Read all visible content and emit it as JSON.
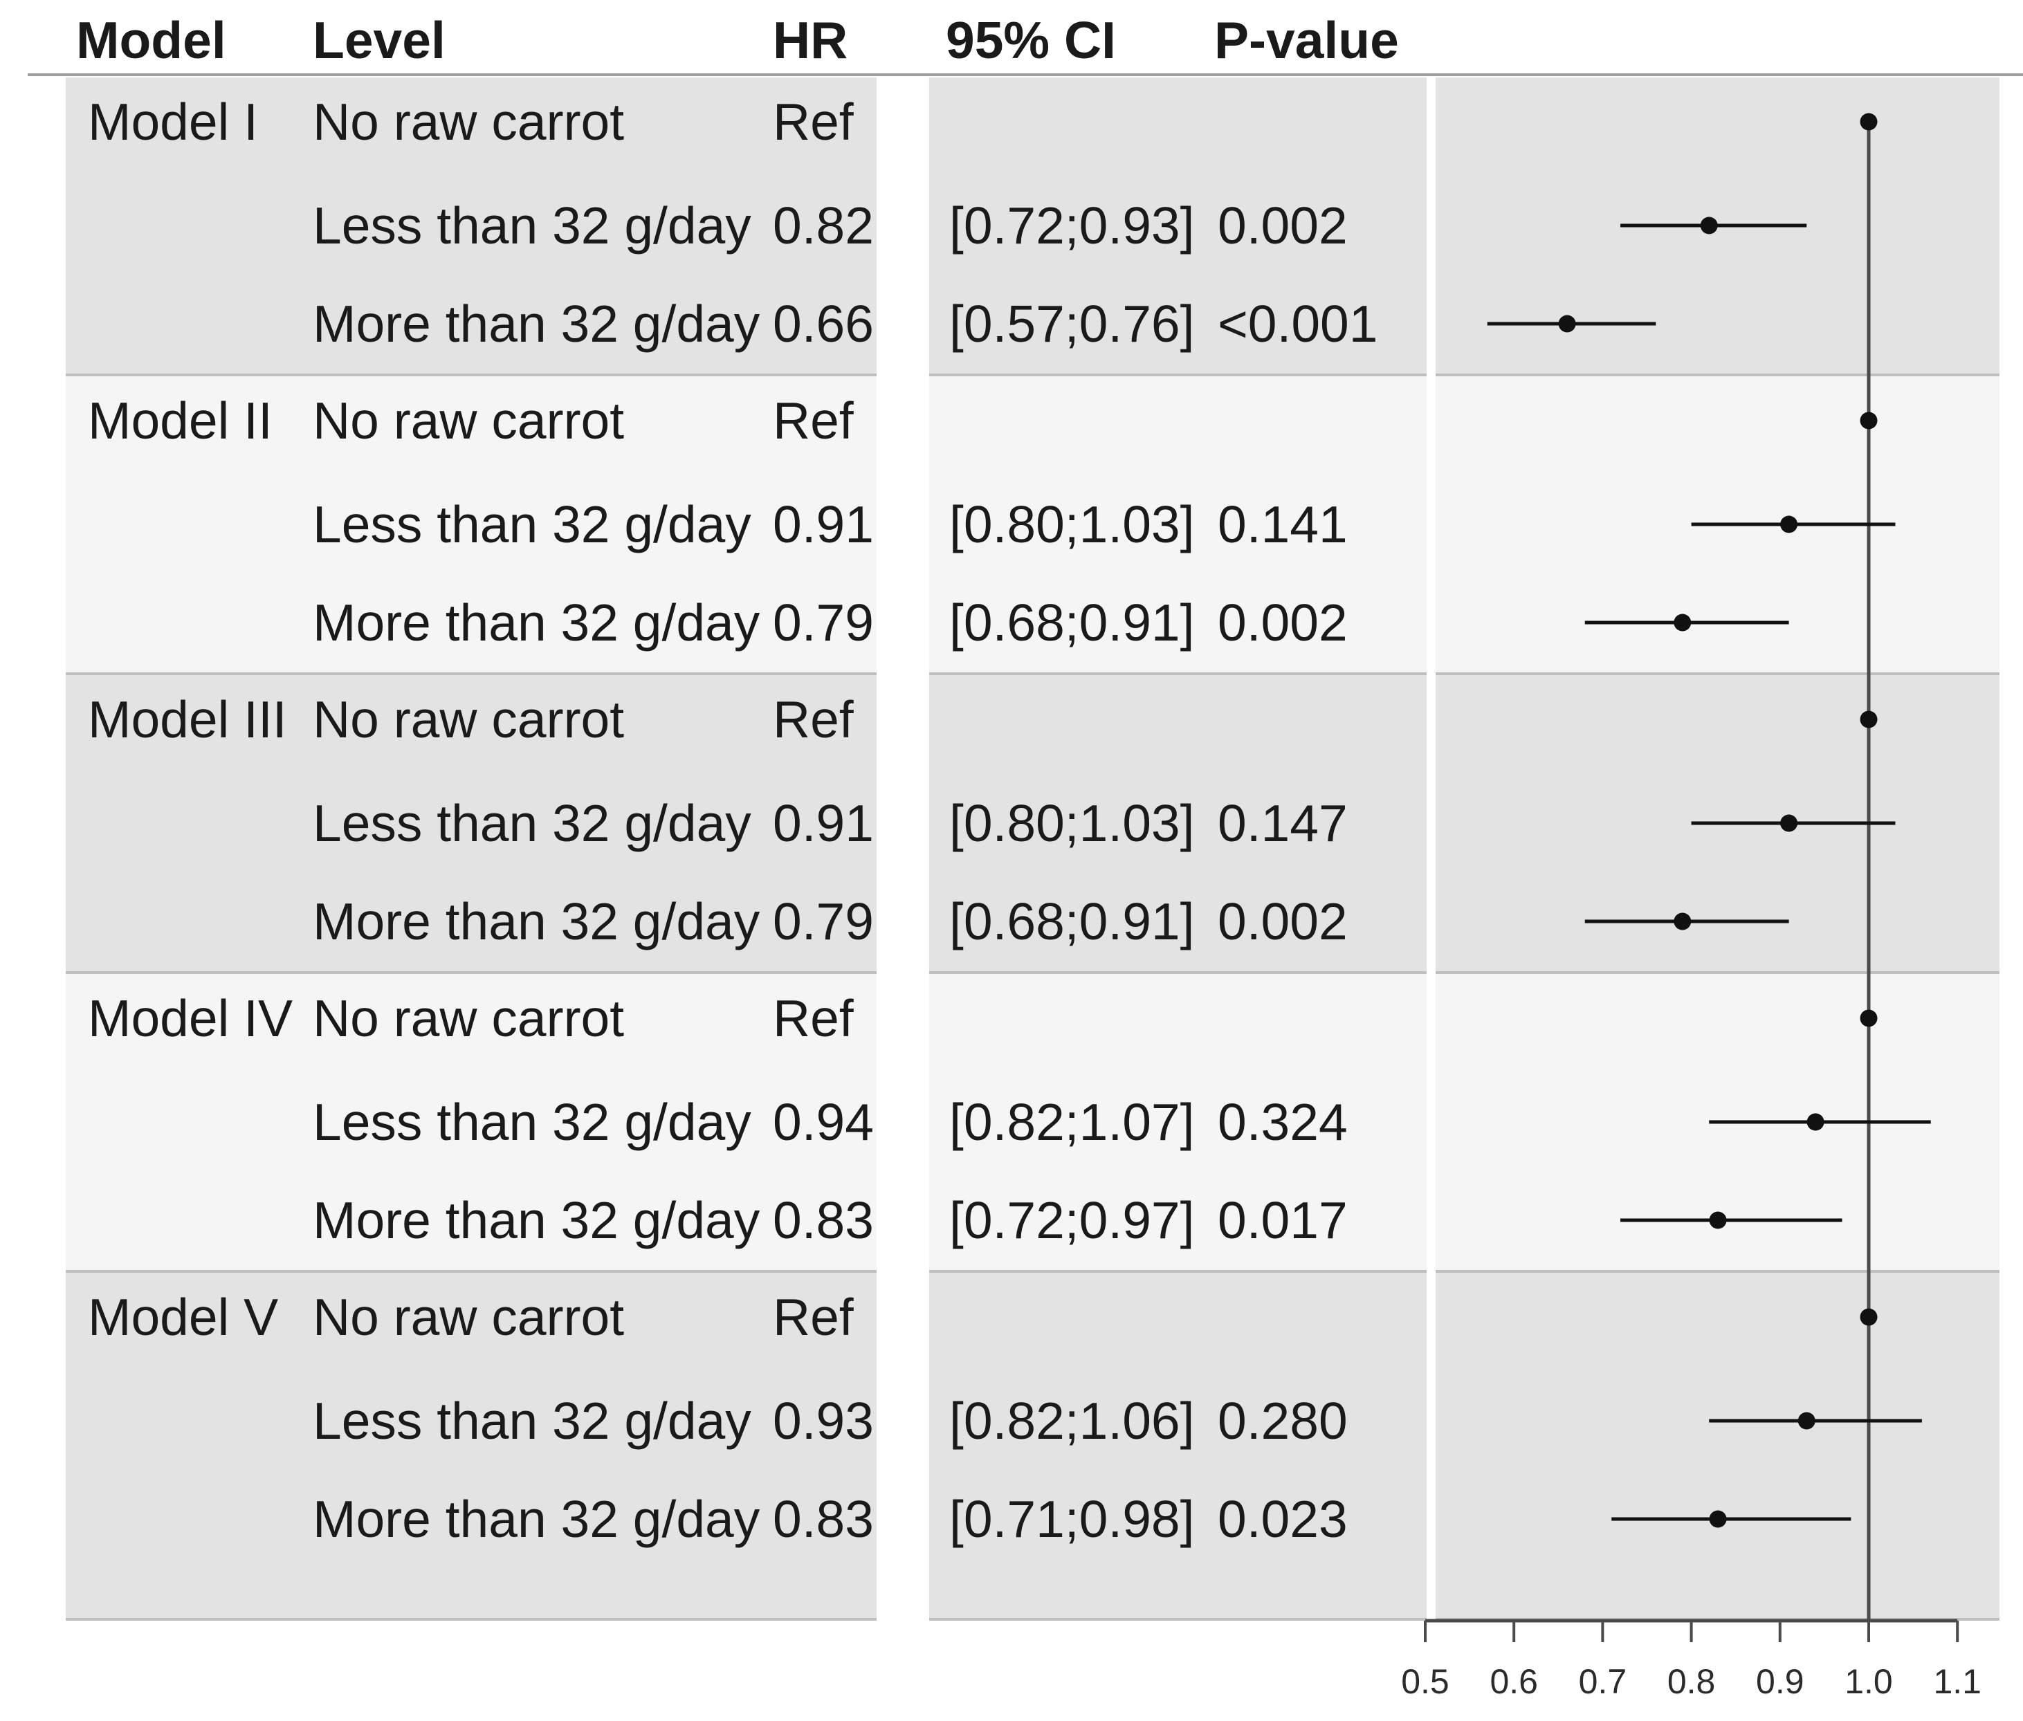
{
  "header": {
    "model": "Model",
    "level": "Level",
    "hr": "HR",
    "ci": "95% CI",
    "pvalue": "P-value"
  },
  "models": [
    {
      "name": "Model I",
      "rows": [
        {
          "level": "No raw carrot",
          "hr": "Ref",
          "ci": "",
          "p": ""
        },
        {
          "level": "Less than 32 g/day",
          "hr": "0.82",
          "ci": "[0.72;0.93]",
          "p": "0.002"
        },
        {
          "level": "More than 32 g/day",
          "hr": "0.66",
          "ci": "[0.57;0.76]",
          "p": "<0.001"
        }
      ]
    },
    {
      "name": "Model II",
      "rows": [
        {
          "level": "No raw carrot",
          "hr": "Ref",
          "ci": "",
          "p": ""
        },
        {
          "level": "Less than 32 g/day",
          "hr": "0.91",
          "ci": "[0.80;1.03]",
          "p": "0.141"
        },
        {
          "level": "More than 32 g/day",
          "hr": "0.79",
          "ci": "[0.68;0.91]",
          "p": "0.002"
        }
      ]
    },
    {
      "name": "Model III",
      "rows": [
        {
          "level": "No raw carrot",
          "hr": "Ref",
          "ci": "",
          "p": ""
        },
        {
          "level": "Less than 32 g/day",
          "hr": "0.91",
          "ci": "[0.80;1.03]",
          "p": "0.147"
        },
        {
          "level": "More than 32 g/day",
          "hr": "0.79",
          "ci": "[0.68;0.91]",
          "p": "0.002"
        }
      ]
    },
    {
      "name": "Model IV",
      "rows": [
        {
          "level": "No raw carrot",
          "hr": "Ref",
          "ci": "",
          "p": ""
        },
        {
          "level": "Less than 32 g/day",
          "hr": "0.94",
          "ci": "[0.82;1.07]",
          "p": "0.324"
        },
        {
          "level": "More than 32 g/day",
          "hr": "0.83",
          "ci": "[0.72;0.97]",
          "p": "0.017"
        }
      ]
    },
    {
      "name": "Model V",
      "rows": [
        {
          "level": "No raw carrot",
          "hr": "Ref",
          "ci": "",
          "p": ""
        },
        {
          "level": "Less than 32 g/day",
          "hr": "0.93",
          "ci": "[0.82;1.06]",
          "p": "0.280"
        },
        {
          "level": "More than 32 g/day",
          "hr": "0.83",
          "ci": "[0.71;0.98]",
          "p": "0.023"
        }
      ]
    }
  ],
  "chart_data": {
    "type": "scatter",
    "subtype": "forest-plot",
    "title": "",
    "xlim": [
      0.5,
      1.1
    ],
    "x_ticks": [
      "0.5",
      "0.6",
      "0.7",
      "0.8",
      "0.9",
      "1.0",
      "1.1"
    ],
    "reference_line_x": 1.0,
    "grid": false,
    "points": [
      {
        "model": "Model I",
        "level": "No raw carrot",
        "hr": 1.0,
        "lo": null,
        "hi": null,
        "ref": true
      },
      {
        "model": "Model I",
        "level": "Less than 32 g/day",
        "hr": 0.82,
        "lo": 0.72,
        "hi": 0.93,
        "ref": false
      },
      {
        "model": "Model I",
        "level": "More than 32 g/day",
        "hr": 0.66,
        "lo": 0.57,
        "hi": 0.76,
        "ref": false
      },
      {
        "model": "Model II",
        "level": "No raw carrot",
        "hr": 1.0,
        "lo": null,
        "hi": null,
        "ref": true
      },
      {
        "model": "Model II",
        "level": "Less than 32 g/day",
        "hr": 0.91,
        "lo": 0.8,
        "hi": 1.03,
        "ref": false
      },
      {
        "model": "Model II",
        "level": "More than 32 g/day",
        "hr": 0.79,
        "lo": 0.68,
        "hi": 0.91,
        "ref": false
      },
      {
        "model": "Model III",
        "level": "No raw carrot",
        "hr": 1.0,
        "lo": null,
        "hi": null,
        "ref": true
      },
      {
        "model": "Model III",
        "level": "Less than 32 g/day",
        "hr": 0.91,
        "lo": 0.8,
        "hi": 1.03,
        "ref": false
      },
      {
        "model": "Model III",
        "level": "More than 32 g/day",
        "hr": 0.79,
        "lo": 0.68,
        "hi": 0.91,
        "ref": false
      },
      {
        "model": "Model IV",
        "level": "No raw carrot",
        "hr": 1.0,
        "lo": null,
        "hi": null,
        "ref": true
      },
      {
        "model": "Model IV",
        "level": "Less than 32 g/day",
        "hr": 0.94,
        "lo": 0.82,
        "hi": 1.07,
        "ref": false
      },
      {
        "model": "Model IV",
        "level": "More than 32 g/day",
        "hr": 0.83,
        "lo": 0.72,
        "hi": 0.97,
        "ref": false
      },
      {
        "model": "Model V",
        "level": "No raw carrot",
        "hr": 1.0,
        "lo": null,
        "hi": null,
        "ref": true
      },
      {
        "model": "Model V",
        "level": "Less than 32 g/day",
        "hr": 0.93,
        "lo": 0.82,
        "hi": 1.06,
        "ref": false
      },
      {
        "model": "Model V",
        "level": "More than 32 g/day",
        "hr": 0.83,
        "lo": 0.71,
        "hi": 0.98,
        "ref": false
      }
    ]
  },
  "colors": {
    "background": "#ffffff",
    "stripe_dark": "#e3e3e3",
    "stripe_light": "#f5f5f5",
    "block_divider": "#bfbfbf",
    "header_rule": "#9e9e9e",
    "text": "#1a1a1a",
    "axis": "#4a4a4a",
    "marker": "#111111",
    "reference_line": "#4a4a4a"
  }
}
